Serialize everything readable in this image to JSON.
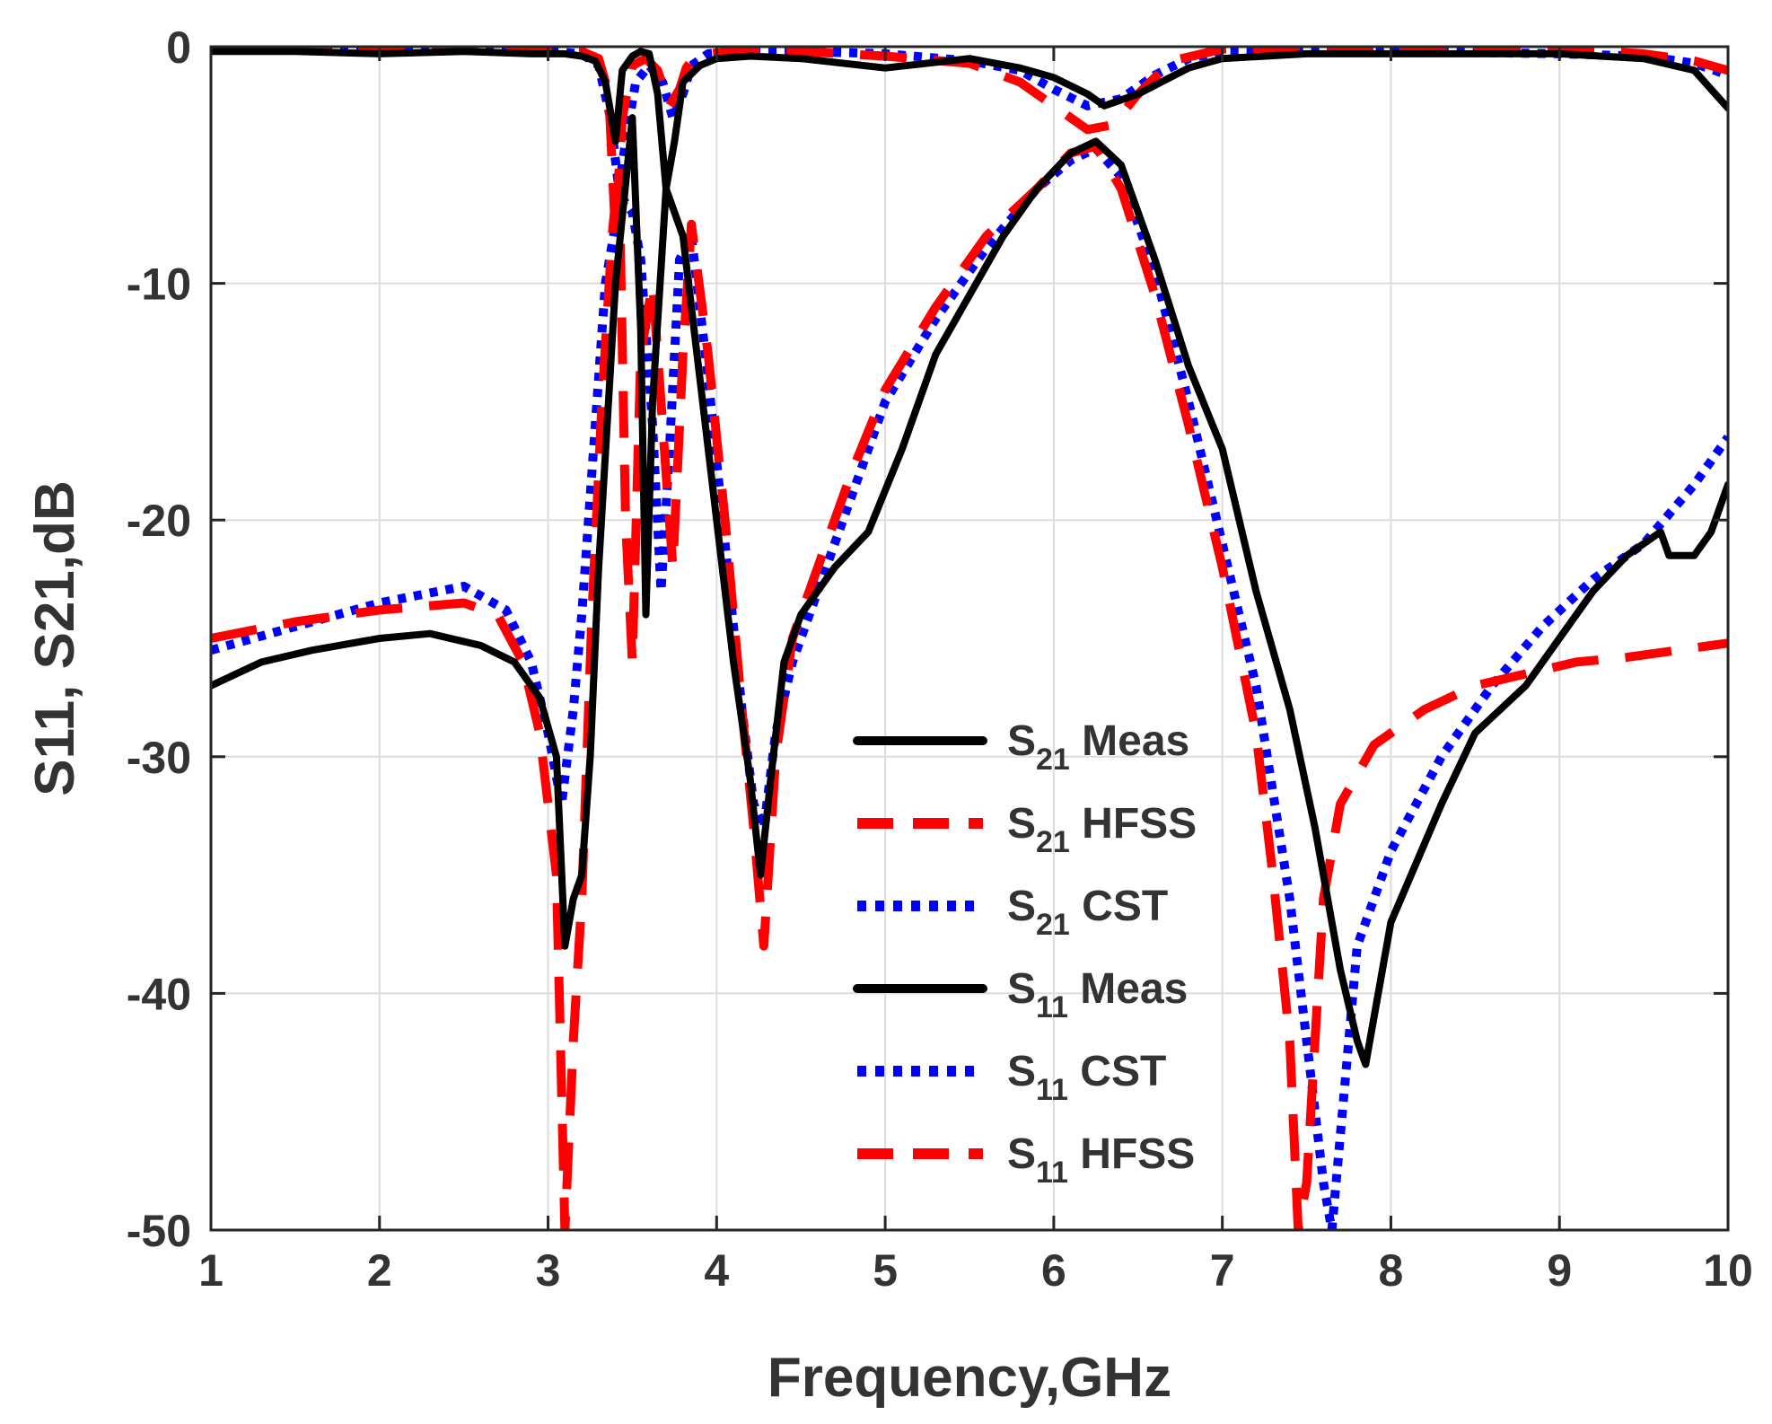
{
  "chart_data": {
    "type": "line",
    "title": "",
    "xlabel": "Frequency,GHz",
    "ylabel": "S11, S21,dB",
    "xlim": [
      1,
      10
    ],
    "ylim": [
      -50,
      0
    ],
    "x_ticks": [
      1,
      2,
      3,
      4,
      5,
      6,
      7,
      8,
      9,
      10
    ],
    "y_ticks": [
      0,
      -10,
      -20,
      -30,
      -40,
      -50
    ],
    "x_tick_labels": [
      "1",
      "2",
      "3",
      "4",
      "5",
      "6",
      "7",
      "8",
      "9",
      "10"
    ],
    "y_tick_labels": [
      "0",
      "-10",
      "-20",
      "-30",
      "-40",
      "-50"
    ],
    "grid": true,
    "legend_position": "center-right",
    "series": [
      {
        "name": "S21 Meas",
        "label_main": "S",
        "label_sub": "21",
        "label_suffix": "Meas",
        "color": "#000000",
        "style": "solid",
        "x": [
          1.0,
          1.5,
          2.0,
          2.5,
          2.9,
          3.1,
          3.2,
          3.28,
          3.34,
          3.4,
          3.44,
          3.5,
          3.55,
          3.6,
          3.65,
          3.7,
          3.75,
          3.8,
          3.9,
          4.0,
          4.2,
          4.5,
          5.0,
          5.5,
          5.8,
          6.0,
          6.2,
          6.3,
          6.5,
          6.8,
          7.0,
          7.5,
          8.0,
          9.0,
          9.5,
          9.8,
          10.0
        ],
        "y": [
          -0.2,
          -0.2,
          -0.3,
          -0.2,
          -0.3,
          -0.3,
          -0.4,
          -0.6,
          -1.5,
          -4.0,
          -1.0,
          -0.4,
          -0.2,
          -0.3,
          -2.0,
          -6.0,
          -4.0,
          -1.5,
          -0.8,
          -0.5,
          -0.4,
          -0.5,
          -0.9,
          -0.5,
          -0.9,
          -1.3,
          -2.0,
          -2.5,
          -2.0,
          -0.9,
          -0.5,
          -0.3,
          -0.3,
          -0.3,
          -0.5,
          -1.0,
          -2.6
        ]
      },
      {
        "name": "S21 HFSS",
        "label_main": "S",
        "label_sub": "21",
        "label_suffix": "HFSS",
        "color": "#ff0000",
        "style": "dashed",
        "x": [
          1.0,
          2.0,
          3.0,
          3.2,
          3.3,
          3.36,
          3.4,
          3.44,
          3.5,
          3.58,
          3.65,
          3.72,
          3.78,
          3.82,
          3.86,
          3.95,
          4.1,
          4.5,
          5.0,
          5.5,
          5.8,
          6.0,
          6.2,
          6.35,
          6.5,
          6.7,
          7.0,
          8.0,
          9.0,
          9.5,
          9.8,
          10.0
        ],
        "y": [
          -0.1,
          -0.1,
          -0.1,
          -0.2,
          -0.5,
          -2.0,
          -8.0,
          -3.0,
          -0.8,
          -0.5,
          -1.0,
          -2.5,
          -1.8,
          -0.9,
          -0.5,
          -0.3,
          -0.2,
          -0.2,
          -0.4,
          -0.7,
          -1.5,
          -2.5,
          -3.5,
          -3.3,
          -2.0,
          -0.6,
          -0.1,
          -0.1,
          -0.1,
          -0.3,
          -0.6,
          -1.0
        ]
      },
      {
        "name": "S21 CST",
        "label_main": "S",
        "label_sub": "21",
        "label_suffix": "CST",
        "color": "#0000ff",
        "style": "dotted",
        "x": [
          1.0,
          2.0,
          3.0,
          3.2,
          3.3,
          3.37,
          3.42,
          3.46,
          3.52,
          3.6,
          3.68,
          3.74,
          3.8,
          3.85,
          3.95,
          4.1,
          4.5,
          5.0,
          5.5,
          5.8,
          6.0,
          6.2,
          6.4,
          6.6,
          6.8,
          7.0,
          8.0,
          9.0,
          9.5,
          9.8,
          10.0
        ],
        "y": [
          -0.1,
          -0.1,
          -0.2,
          -0.3,
          -0.8,
          -3.0,
          -6.0,
          -4.0,
          -1.5,
          -0.8,
          -1.5,
          -3.0,
          -2.0,
          -0.8,
          -0.3,
          -0.2,
          -0.2,
          -0.3,
          -0.6,
          -1.0,
          -1.8,
          -2.5,
          -2.2,
          -1.2,
          -0.5,
          -0.2,
          -0.2,
          -0.3,
          -0.4,
          -0.7,
          -1.2
        ]
      },
      {
        "name": "S11 Meas",
        "label_main": "S",
        "label_sub": "11",
        "label_suffix": "Meas",
        "color": "#000000",
        "style": "solid",
        "x": [
          1.0,
          1.3,
          1.6,
          2.0,
          2.3,
          2.6,
          2.8,
          2.95,
          3.05,
          3.1,
          3.15,
          3.2,
          3.25,
          3.3,
          3.4,
          3.5,
          3.55,
          3.58,
          3.62,
          3.7,
          3.8,
          3.9,
          4.0,
          4.1,
          4.2,
          4.26,
          4.32,
          4.4,
          4.5,
          4.7,
          4.9,
          5.1,
          5.3,
          5.5,
          5.7,
          5.9,
          6.1,
          6.25,
          6.4,
          6.6,
          6.8,
          7.0,
          7.2,
          7.4,
          7.55,
          7.7,
          7.8,
          7.85,
          8.0,
          8.3,
          8.5,
          8.8,
          9.0,
          9.2,
          9.4,
          9.6,
          9.65,
          9.8,
          9.9,
          10.0
        ],
        "y": [
          -27,
          -26,
          -25.5,
          -25,
          -24.8,
          -25.3,
          -26,
          -27.5,
          -30,
          -38,
          -36,
          -35,
          -30,
          -22,
          -10,
          -3,
          -12,
          -24,
          -15,
          -6,
          -8,
          -14,
          -20,
          -26,
          -31,
          -35,
          -31,
          -26,
          -24,
          -22,
          -20.5,
          -17,
          -13,
          -10.5,
          -8,
          -6,
          -4.5,
          -4,
          -5,
          -9,
          -13.5,
          -17,
          -23,
          -28,
          -33,
          -39,
          -42,
          -43,
          -37,
          -32,
          -29,
          -27,
          -25,
          -23,
          -21.5,
          -20.5,
          -21.5,
          -21.5,
          -20.5,
          -18.5
        ]
      },
      {
        "name": "S11 CST",
        "label_main": "S",
        "label_sub": "11",
        "label_suffix": "CST",
        "color": "#0000ff",
        "style": "dotted",
        "x": [
          1.0,
          1.5,
          2.0,
          2.5,
          2.75,
          2.9,
          3.0,
          3.08,
          3.15,
          3.2,
          3.28,
          3.34,
          3.4,
          3.45,
          3.5,
          3.55,
          3.62,
          3.67,
          3.72,
          3.78,
          3.85,
          3.95,
          4.05,
          4.15,
          4.22,
          4.28,
          4.35,
          4.45,
          4.6,
          4.8,
          5.0,
          5.3,
          5.6,
          5.9,
          6.1,
          6.25,
          6.4,
          6.6,
          6.8,
          7.0,
          7.2,
          7.4,
          7.5,
          7.6,
          7.65,
          7.7,
          7.8,
          8.0,
          8.3,
          8.6,
          8.9,
          9.2,
          9.5,
          9.8,
          10.0
        ],
        "y": [
          -25.5,
          -24.5,
          -23.5,
          -22.8,
          -23.8,
          -26,
          -29,
          -32,
          -28,
          -24,
          -16,
          -10,
          -7.5,
          -6.5,
          -7,
          -9,
          -16,
          -23,
          -17,
          -9,
          -8,
          -14,
          -21,
          -28,
          -32,
          -33,
          -29,
          -26,
          -23,
          -19,
          -15,
          -11.5,
          -8.5,
          -6,
          -4.8,
          -4.3,
          -5.5,
          -9.5,
          -15,
          -21,
          -27,
          -36,
          -42,
          -48,
          -50,
          -46,
          -38,
          -34,
          -30,
          -27,
          -24.5,
          -22.5,
          -21,
          -18.5,
          -16.5
        ]
      },
      {
        "name": "S11 HFSS",
        "label_main": "S",
        "label_sub": "11",
        "label_suffix": "HFSS",
        "color": "#ff0000",
        "style": "dashed",
        "x": [
          1.0,
          1.5,
          2.0,
          2.5,
          2.7,
          2.85,
          2.95,
          3.05,
          3.1,
          3.15,
          3.2,
          3.26,
          3.32,
          3.38,
          3.42,
          3.46,
          3.5,
          3.55,
          3.62,
          3.68,
          3.74,
          3.8,
          3.85,
          3.95,
          4.05,
          4.15,
          4.22,
          4.28,
          4.35,
          4.45,
          4.6,
          4.8,
          5.0,
          5.3,
          5.6,
          5.9,
          6.1,
          6.25,
          6.4,
          6.6,
          6.8,
          7.0,
          7.2,
          7.3,
          7.4,
          7.45,
          7.5,
          7.55,
          7.6,
          7.7,
          7.9,
          8.2,
          8.5,
          8.8,
          9.1,
          9.4,
          9.7,
          10.0
        ],
        "y": [
          -25,
          -24.3,
          -23.8,
          -23.5,
          -24,
          -26,
          -29,
          -35,
          -50,
          -42,
          -36,
          -24,
          -15,
          -8,
          -5,
          -20,
          -26,
          -13,
          -10,
          -16,
          -22,
          -13,
          -7.5,
          -13,
          -20,
          -28,
          -33,
          -38,
          -30,
          -25,
          -22,
          -18,
          -14.5,
          -11,
          -8,
          -6,
          -4.5,
          -4.2,
          -6,
          -10.5,
          -16,
          -22,
          -29,
          -35,
          -42,
          -50,
          -48,
          -42,
          -36,
          -32,
          -29.5,
          -28,
          -27,
          -26.5,
          -26,
          -25.8,
          -25.5,
          -25.2
        ]
      }
    ]
  }
}
